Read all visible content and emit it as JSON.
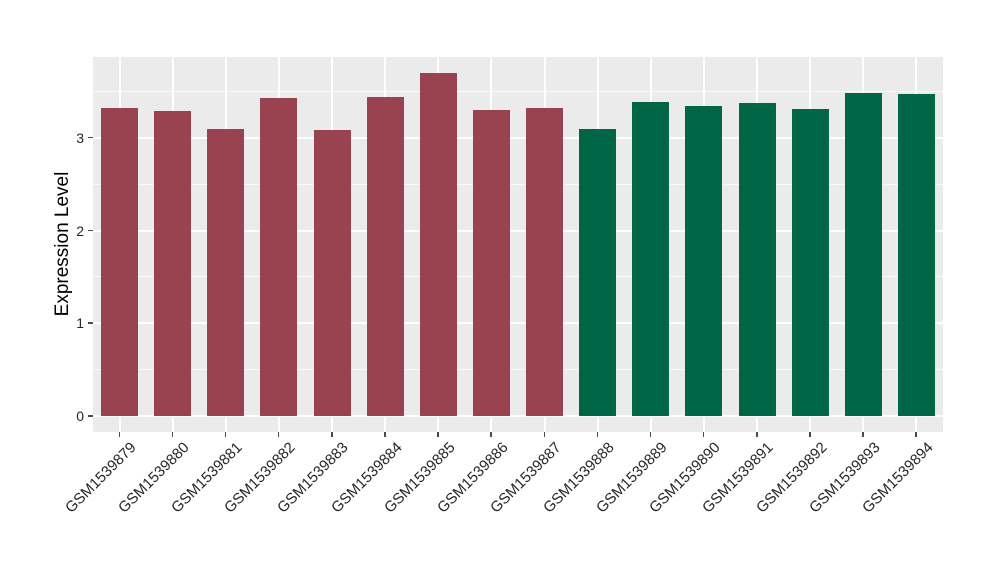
{
  "chart_data": {
    "type": "bar",
    "title": "",
    "ylabel": "Expression Level",
    "xlabel": "",
    "categories": [
      "GSM1539879",
      "GSM1539880",
      "GSM1539881",
      "GSM1539882",
      "GSM1539883",
      "GSM1539884",
      "GSM1539885",
      "GSM1539886",
      "GSM1539887",
      "GSM1539888",
      "GSM1539889",
      "GSM1539890",
      "GSM1539891",
      "GSM1539892",
      "GSM1539893",
      "GSM1539894"
    ],
    "values": [
      3.32,
      3.29,
      3.1,
      3.43,
      3.09,
      3.44,
      3.7,
      3.3,
      3.32,
      3.1,
      3.39,
      3.34,
      3.38,
      3.31,
      3.49,
      3.47
    ],
    "groups": [
      "group1",
      "group1",
      "group1",
      "group1",
      "group1",
      "group1",
      "group1",
      "group1",
      "group1",
      "group2",
      "group2",
      "group2",
      "group2",
      "group2",
      "group2",
      "group2"
    ],
    "group_colors": {
      "group1": "#9A4350",
      "group2": "#006646"
    },
    "yticks": [
      0,
      1,
      2,
      3
    ],
    "ytick_labels": [
      "0",
      "1",
      "2",
      "3"
    ],
    "ylim": [
      -0.17,
      3.87
    ],
    "grid": true,
    "legend_position": "none",
    "panel_bg": "#EBEBEB",
    "grid_color": "#FFFFFF",
    "axis_text_color": "#262626",
    "tick_color": "#4a4a4a"
  }
}
